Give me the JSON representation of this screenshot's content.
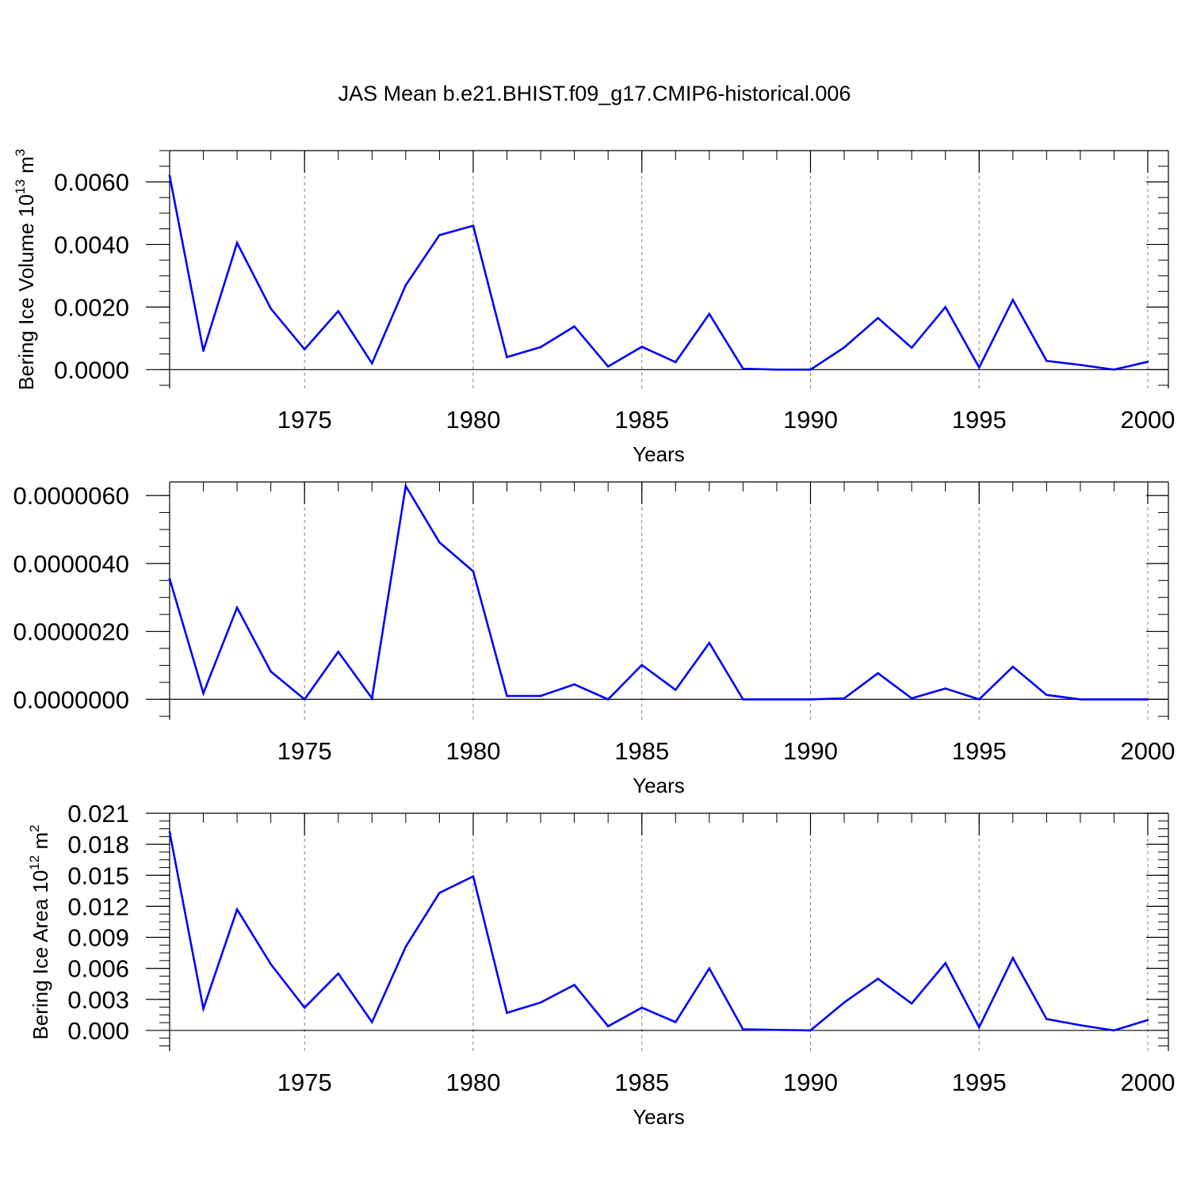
{
  "title": "JAS Mean b.e21.BHIST.f09_g17.CMIP6-historical.006",
  "colors": {
    "line": "#0000ff",
    "axis": "#000000",
    "grid": "#808080"
  },
  "chart_data": [
    {
      "type": "line",
      "title": "",
      "xlabel": "Years",
      "ylabel_parts": {
        "prefix": "Bering Ice Volume 10",
        "exp": "13",
        "unit": " m",
        "unit_exp": "3"
      },
      "xlim": [
        1971,
        2000
      ],
      "ylim": [
        -0.0006,
        0.007
      ],
      "x_ticks": [
        "1975",
        "1980",
        "1985",
        "1990",
        "1995",
        "2000"
      ],
      "y_ticks": [
        0.0,
        0.002,
        0.004,
        0.006
      ],
      "y_tick_labels": [
        "0.0000",
        "0.0020",
        "0.0040",
        "0.0060"
      ],
      "x": [
        1971,
        1972,
        1973,
        1974,
        1975,
        1976,
        1977,
        1978,
        1979,
        1980,
        1981,
        1982,
        1983,
        1984,
        1985,
        1986,
        1987,
        1988,
        1989,
        1990,
        1991,
        1992,
        1993,
        1994,
        1995,
        1996,
        1997,
        1998,
        1999,
        2000
      ],
      "values": [
        0.0062,
        0.0006,
        0.00405,
        0.00195,
        0.00065,
        0.00187,
        0.0002,
        0.0027,
        0.0043,
        0.0046,
        0.0004,
        0.00072,
        0.00138,
        0.0001,
        0.00073,
        0.00024,
        0.00178,
        3e-05,
        0.0,
        0.0,
        0.00071,
        0.00165,
        0.0007,
        0.002,
        7e-05,
        0.00223,
        0.00028,
        0.00015,
        0.0,
        0.00025
      ]
    },
    {
      "type": "line",
      "title": "",
      "xlabel": "Years",
      "ylabel_parts": null,
      "xlim": [
        1971,
        2000
      ],
      "ylim": [
        -6e-07,
        6.4e-06
      ],
      "x_ticks": [
        "1975",
        "1980",
        "1985",
        "1990",
        "1995",
        "2000"
      ],
      "y_ticks": [
        0.0,
        2e-06,
        4e-06,
        6e-06
      ],
      "y_tick_labels": [
        "0.0000000",
        "0.0000020",
        "0.0000040",
        "0.0000060"
      ],
      "x": [
        1971,
        1972,
        1973,
        1974,
        1975,
        1976,
        1977,
        1978,
        1979,
        1980,
        1981,
        1982,
        1983,
        1984,
        1985,
        1986,
        1987,
        1988,
        1989,
        1990,
        1991,
        1992,
        1993,
        1994,
        1995,
        1996,
        1997,
        1998,
        1999,
        2000
      ],
      "values": [
        3.55e-06,
        1.8e-07,
        2.7e-06,
        8.2e-07,
        0.0,
        1.4e-06,
        3e-08,
        6.28e-06,
        4.62e-06,
        3.77e-06,
        1e-07,
        1e-07,
        4.4e-07,
        0.0,
        1.01e-06,
        2.8e-07,
        1.66e-06,
        0.0,
        0.0,
        0.0,
        3e-08,
        7.7e-07,
        3e-08,
        3.2e-07,
        0.0,
        9.6e-07,
        1.3e-07,
        0.0,
        0.0,
        0.0
      ]
    },
    {
      "type": "line",
      "title": "",
      "xlabel": "Years",
      "ylabel_parts": {
        "prefix": "Bering Ice Area 10",
        "exp": "12",
        "unit": " m",
        "unit_exp": "2"
      },
      "xlim": [
        1971,
        2000
      ],
      "ylim": [
        -0.002,
        0.021
      ],
      "x_ticks": [
        "1975",
        "1980",
        "1985",
        "1990",
        "1995",
        "2000"
      ],
      "y_ticks": [
        0.0,
        0.003,
        0.006,
        0.009,
        0.012,
        0.015,
        0.018,
        0.021
      ],
      "y_tick_labels": [
        "0.000",
        "0.003",
        "0.006",
        "0.009",
        "0.012",
        "0.015",
        "0.018",
        "0.021"
      ],
      "x": [
        1971,
        1972,
        1973,
        1974,
        1975,
        1976,
        1977,
        1978,
        1979,
        1980,
        1981,
        1982,
        1983,
        1984,
        1985,
        1986,
        1987,
        1988,
        1989,
        1990,
        1991,
        1992,
        1993,
        1994,
        1995,
        1996,
        1997,
        1998,
        1999,
        2000
      ],
      "values": [
        0.0192,
        0.0021,
        0.0117,
        0.0064,
        0.0022,
        0.0055,
        0.0008,
        0.0081,
        0.0133,
        0.0149,
        0.0017,
        0.0027,
        0.0044,
        0.0004,
        0.0022,
        0.0008,
        0.006,
        0.0001,
        5e-05,
        0.0,
        0.0027,
        0.005,
        0.0026,
        0.0065,
        0.0003,
        0.007,
        0.0011,
        0.0005,
        0.0,
        0.001
      ]
    }
  ]
}
